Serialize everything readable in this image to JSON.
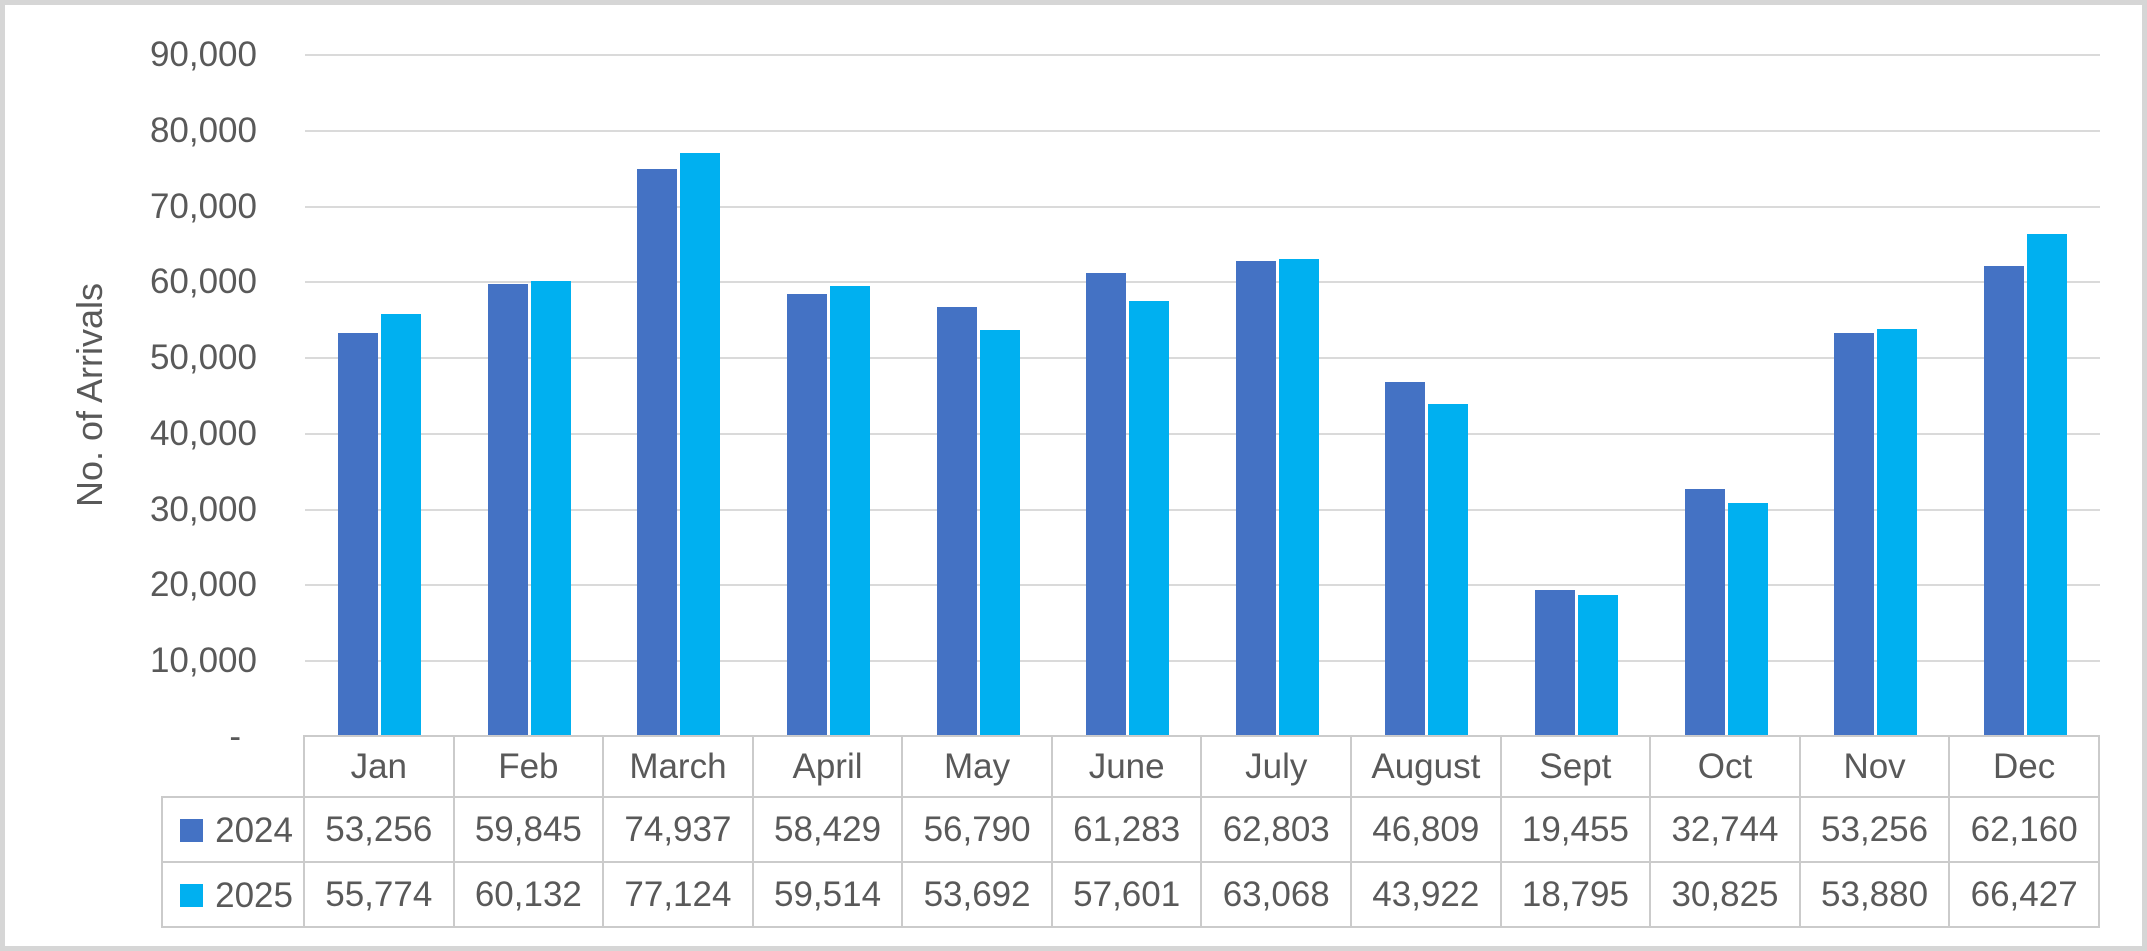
{
  "chart_data": {
    "type": "bar",
    "title": "",
    "xlabel": "",
    "ylabel": "No. of Arrivals",
    "categories": [
      "Jan",
      "Feb",
      "March",
      "April",
      "May",
      "June",
      "July",
      "August",
      "Sept",
      "Oct",
      "Nov",
      "Dec"
    ],
    "series": [
      {
        "name": "2024",
        "color": "#4472C4",
        "values": [
          53256,
          59845,
          74937,
          58429,
          56790,
          61283,
          62803,
          46809,
          19455,
          32744,
          53256,
          62160
        ]
      },
      {
        "name": "2025",
        "color": "#00B0F0",
        "values": [
          55774,
          60132,
          77124,
          59514,
          53692,
          57601,
          63068,
          43922,
          18795,
          30825,
          53880,
          66427
        ]
      }
    ],
    "ylim": [
      0,
      90000
    ],
    "ytick_step": 10000,
    "ytick_labels": [
      "-",
      "10,000",
      "20,000",
      "30,000",
      "40,000",
      "50,000",
      "60,000",
      "70,000",
      "80,000",
      "90,000"
    ],
    "grid": true,
    "legend_position": "data-table-row-headers"
  },
  "table": {
    "row_headers": [
      "2024",
      "2025"
    ],
    "columns": [
      "Jan",
      "Feb",
      "March",
      "April",
      "May",
      "June",
      "July",
      "August",
      "Sept",
      "Oct",
      "Nov",
      "Dec"
    ],
    "rows": [
      [
        "53,256",
        "59,845",
        "74,937",
        "58,429",
        "56,790",
        "61,283",
        "62,803",
        "46,809",
        "19,455",
        "32,744",
        "53,256",
        "62,160"
      ],
      [
        "55,774",
        "60,132",
        "77,124",
        "59,514",
        "53,692",
        "57,601",
        "63,068",
        "43,922",
        "18,795",
        "30,825",
        "53,880",
        "66,427"
      ]
    ]
  },
  "colors": {
    "series_2024": "#4472C4",
    "series_2025": "#00B0F0",
    "axis_text": "#595959",
    "gridline": "#DADADA",
    "table_border": "#CBCBCB",
    "frame_border": "#D6D6D6",
    "background": "#FFFFFF"
  }
}
